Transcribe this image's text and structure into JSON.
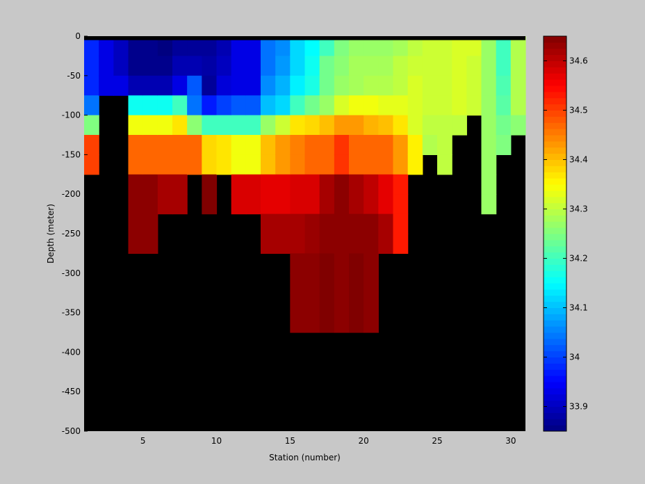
{
  "chart_data": {
    "type": "heatmap",
    "xlabel": "Station (number)",
    "ylabel": "Depth (meter)",
    "xlim": [
      1,
      31
    ],
    "ylim": [
      -500,
      0
    ],
    "x_ticks": [
      5,
      10,
      15,
      20,
      25,
      30
    ],
    "y_ticks": [
      0,
      -50,
      -100,
      -150,
      -200,
      -250,
      -300,
      -350,
      -400,
      -450,
      -500
    ],
    "colorbar": {
      "min": 33.85,
      "max": 34.65,
      "ticks": [
        33.9,
        34,
        34.1,
        34.2,
        34.3,
        34.4,
        34.5,
        34.6
      ],
      "colormap": "jet"
    },
    "background_color": "#000000",
    "top_band_depth_m": 5,
    "column_width_stations": 1,
    "row_depth_m": 25,
    "columns": [
      {
        "start": 1,
        "values": [
          33.98,
          33.98,
          33.98,
          34.04,
          34.25,
          34.5,
          34.5
        ]
      },
      {
        "start": 2,
        "values": [
          33.93,
          33.93,
          33.93
        ]
      },
      {
        "start": 3,
        "values": [
          33.9,
          33.9,
          33.93
        ]
      },
      {
        "start": 4,
        "values": [
          33.86,
          33.86,
          33.89,
          34.16,
          34.34,
          34.47,
          34.47,
          34.64,
          34.64,
          34.64,
          34.64
        ]
      },
      {
        "start": 5,
        "values": [
          33.86,
          33.86,
          33.89,
          34.16,
          34.34,
          34.47,
          34.47,
          34.64,
          34.64,
          34.64,
          34.64
        ]
      },
      {
        "start": 6,
        "values": [
          33.85,
          33.86,
          33.89,
          34.16,
          34.34,
          34.47,
          34.47,
          34.62,
          34.62
        ]
      },
      {
        "start": 7,
        "values": [
          33.87,
          33.89,
          33.93,
          34.2,
          34.37,
          34.47,
          34.47,
          34.62,
          34.62
        ]
      },
      {
        "start": 8,
        "values": [
          33.87,
          33.89,
          34.02,
          34.04,
          34.26,
          34.47,
          34.47
        ]
      },
      {
        "start": 9,
        "values": [
          33.87,
          33.88,
          33.87,
          33.97,
          34.2,
          34.38,
          34.38,
          34.66,
          34.66
        ]
      },
      {
        "start": 10,
        "values": [
          33.89,
          33.9,
          33.92,
          34.0,
          34.2,
          34.37,
          34.37
        ]
      },
      {
        "start": 11,
        "values": [
          33.93,
          33.93,
          33.93,
          34.02,
          34.2,
          34.34,
          34.34,
          34.58,
          34.58
        ]
      },
      {
        "start": 12,
        "values": [
          33.93,
          33.93,
          33.93,
          34.02,
          34.2,
          34.34,
          34.34,
          34.58,
          34.58
        ]
      },
      {
        "start": 13,
        "values": [
          34.04,
          34.04,
          34.06,
          34.1,
          34.27,
          34.4,
          34.4,
          34.57,
          34.57,
          34.62,
          34.62
        ]
      },
      {
        "start": 14,
        "values": [
          34.06,
          34.07,
          34.09,
          34.12,
          34.31,
          34.43,
          34.43,
          34.57,
          34.57,
          34.62,
          34.62
        ]
      },
      {
        "start": 15,
        "values": [
          34.12,
          34.12,
          34.14,
          34.2,
          34.37,
          34.45,
          34.45,
          34.58,
          34.58,
          34.62,
          34.62,
          34.64,
          34.64,
          34.64,
          34.64
        ]
      },
      {
        "start": 16,
        "values": [
          34.15,
          34.16,
          34.17,
          34.24,
          34.38,
          34.47,
          34.47,
          34.58,
          34.58,
          34.63,
          34.63,
          34.64,
          34.64,
          34.64,
          34.64
        ]
      },
      {
        "start": 17,
        "values": [
          34.2,
          34.24,
          34.24,
          34.27,
          34.4,
          34.47,
          34.47,
          34.62,
          34.62,
          34.64,
          34.64,
          34.66,
          34.66,
          34.66,
          34.66
        ]
      },
      {
        "start": 18,
        "values": [
          34.25,
          34.26,
          34.27,
          34.32,
          34.43,
          34.51,
          34.51,
          34.64,
          34.64,
          34.64,
          34.64,
          34.64,
          34.64,
          34.64,
          34.64
        ]
      },
      {
        "start": 19,
        "values": [
          34.27,
          34.28,
          34.28,
          34.34,
          34.43,
          34.47,
          34.47,
          34.62,
          34.62,
          34.64,
          34.64,
          34.66,
          34.66,
          34.66,
          34.66
        ]
      },
      {
        "start": 20,
        "values": [
          34.27,
          34.28,
          34.29,
          34.34,
          34.41,
          34.47,
          34.47,
          34.6,
          34.6,
          34.64,
          34.64,
          34.64,
          34.64,
          34.64,
          34.64
        ]
      },
      {
        "start": 21,
        "values": [
          34.27,
          34.28,
          34.29,
          34.33,
          34.4,
          34.47,
          34.47,
          34.57,
          34.57,
          34.62,
          34.62
        ]
      },
      {
        "start": 22,
        "values": [
          34.28,
          34.3,
          34.3,
          34.33,
          34.37,
          34.43,
          34.43,
          34.53,
          34.53,
          34.53,
          34.53
        ]
      },
      {
        "start": 23,
        "values": [
          34.3,
          34.31,
          34.32,
          34.32,
          34.32,
          34.36,
          34.36
        ]
      },
      {
        "start": 24,
        "values": [
          34.31,
          34.31,
          34.31,
          34.31,
          34.3,
          34.29
        ]
      },
      {
        "start": 25,
        "values": [
          34.31,
          34.31,
          34.31,
          34.31,
          34.3,
          34.3,
          34.3
        ]
      },
      {
        "start": 26,
        "values": [
          34.32,
          34.32,
          34.32,
          34.32,
          34.3
        ]
      },
      {
        "start": 27,
        "values": [
          34.32,
          34.31,
          34.31,
          34.31
        ]
      },
      {
        "start": 28,
        "values": [
          34.27,
          34.27,
          34.27,
          34.27,
          34.27,
          34.27,
          34.27,
          34.27,
          34.27
        ]
      },
      {
        "start": 29,
        "values": [
          34.2,
          34.2,
          34.21,
          34.22,
          34.24,
          34.25
        ]
      },
      {
        "start": 30,
        "values": [
          34.29,
          34.29,
          34.29,
          34.29,
          34.26
        ]
      }
    ]
  }
}
